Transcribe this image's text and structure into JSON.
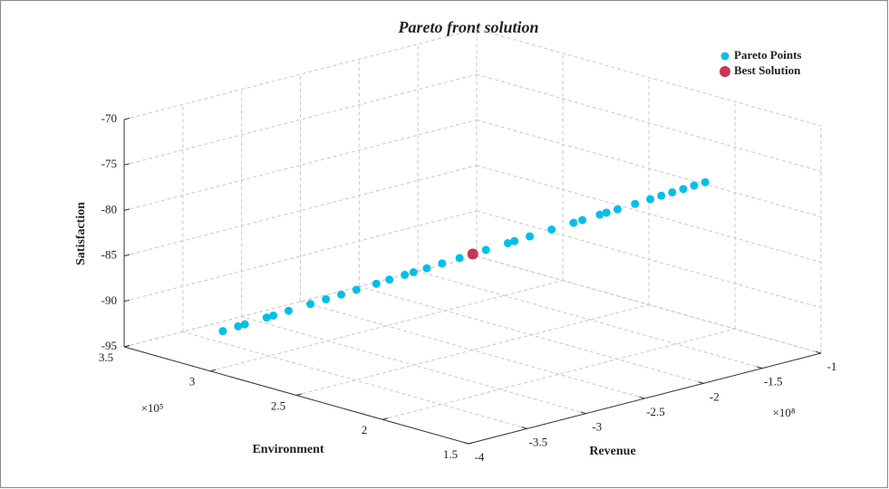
{
  "chart_data": {
    "type": "scatter3d",
    "title": "Pareto front solution",
    "x_label": "Revenue",
    "y_label": "Environment",
    "z_label": "Satisfaction",
    "x_multiplier": "×10⁸",
    "y_multiplier": "×10⁵",
    "xlim": [
      -4,
      -1
    ],
    "xticks": [
      -4,
      -3.5,
      -3,
      -2.5,
      -2,
      -1.5,
      -1
    ],
    "ylim": [
      1.5,
      3.5
    ],
    "yticks": [
      1.5,
      2,
      2.5,
      3,
      3.5
    ],
    "zlim": [
      -95,
      -70
    ],
    "zticks": [
      -95,
      -90,
      -85,
      -80,
      -75,
      -70
    ],
    "grid": true,
    "legend": "top-right",
    "series": [
      {
        "name": "Pareto Points",
        "color": "#00c0e8",
        "x": [
          -3.6,
          -3.53,
          -3.5,
          -3.4,
          -3.37,
          -3.3,
          -3.2,
          -3.13,
          -3.06,
          -2.99,
          -2.9,
          -2.84,
          -2.77,
          -2.73,
          -2.67,
          -2.6,
          -2.52,
          -2.4,
          -2.3,
          -2.27,
          -2.2,
          -2.1,
          -2.0,
          -1.96,
          -1.88,
          -1.85,
          -1.8,
          -1.72,
          -1.65,
          -1.6,
          -1.55,
          -1.5,
          -1.45,
          -1.4
        ],
        "y": [
          3.2,
          3.159,
          3.141,
          3.082,
          3.064,
          3.023,
          2.964,
          2.922,
          2.881,
          2.84,
          2.786,
          2.751,
          2.71,
          2.686,
          2.65,
          2.609,
          2.562,
          2.491,
          2.432,
          2.414,
          2.373,
          2.314,
          2.255,
          2.231,
          2.184,
          2.166,
          2.136,
          2.089,
          2.048,
          2.018,
          1.989,
          1.959,
          1.93,
          1.9
        ],
        "z": [
          -93,
          -92.49,
          -92.27,
          -91.55,
          -91.33,
          -90.82,
          -90.09,
          -89.58,
          -89.07,
          -88.56,
          -87.91,
          -87.47,
          -86.96,
          -86.67,
          -86.24,
          -85.73,
          -85.15,
          -84.27,
          -83.55,
          -83.33,
          -82.82,
          -82.09,
          -81.36,
          -81.07,
          -80.49,
          -80.27,
          -79.91,
          -79.33,
          -78.82,
          -78.45,
          -78.09,
          -77.73,
          -77.36,
          -77.0
        ]
      },
      {
        "name": "Best Solution",
        "color": "#c8364f",
        "x": [
          -2.46
        ],
        "y": [
          2.526
        ],
        "z": [
          -84.71
        ]
      }
    ]
  }
}
